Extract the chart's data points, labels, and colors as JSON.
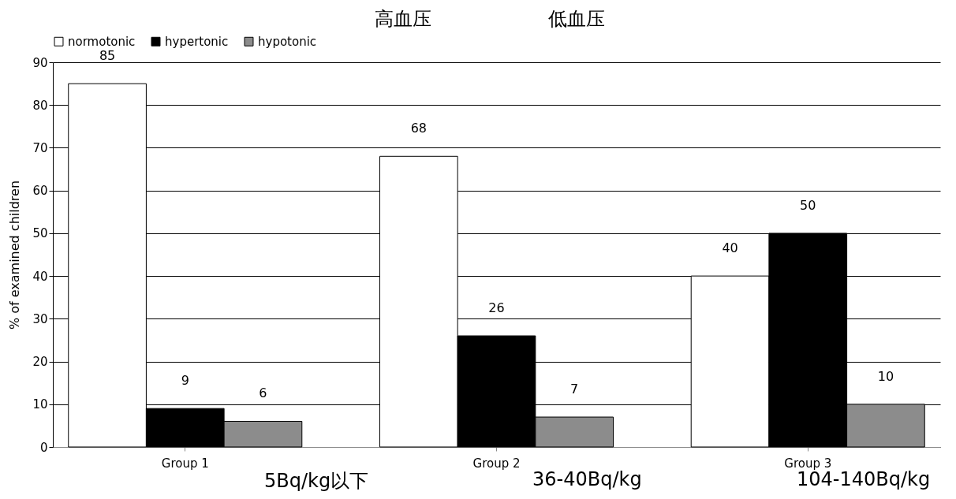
{
  "chart_data": {
    "type": "bar",
    "ylabel": "% of examined children",
    "categories": [
      "Group 1",
      "Group 2",
      "Group 3"
    ],
    "series": [
      {
        "name": "normotonic",
        "color": "#ffffff",
        "values": [
          85,
          68,
          40
        ]
      },
      {
        "name": "hypertonic",
        "color": "#000000",
        "values": [
          9,
          26,
          50
        ]
      },
      {
        "name": "hypotonic",
        "color": "#8c8c8c",
        "values": [
          6,
          7,
          10
        ]
      }
    ],
    "ylim": [
      0,
      90
    ],
    "yticks": [
      0,
      10,
      20,
      30,
      40,
      50,
      60,
      70,
      80,
      90
    ],
    "grid": "y",
    "legend": "top",
    "data_labels": true,
    "annotations": [
      "高血压",
      "低血压",
      "5Bq/kg以下",
      "36-40Bq/kg",
      "104-140Bq/kg"
    ]
  }
}
